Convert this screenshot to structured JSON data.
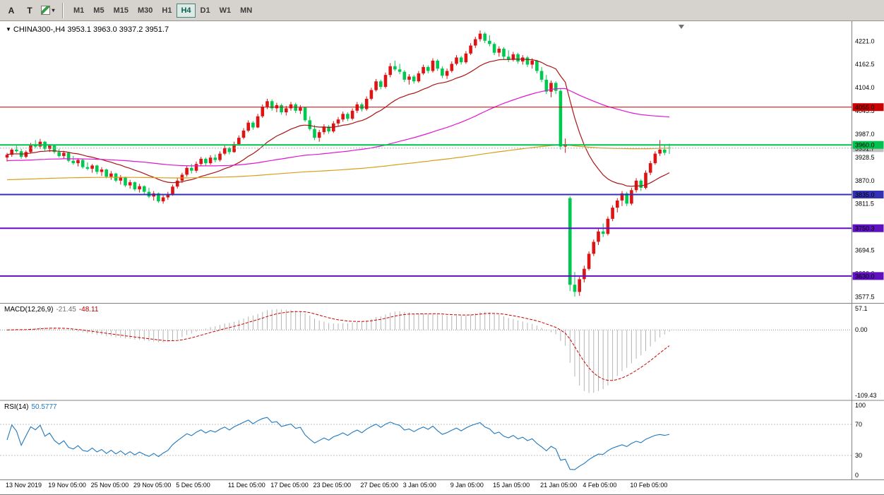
{
  "icons": {
    "symbol_dropdown": "▼",
    "chevron_down": "▾"
  },
  "toolbar": {
    "tool_buttons": [
      {
        "label": "A"
      },
      {
        "label": "T"
      }
    ],
    "timeframes": [
      "M1",
      "M5",
      "M15",
      "M30",
      "H1",
      "H4",
      "D1",
      "W1",
      "MN"
    ],
    "active_timeframe": "H4"
  },
  "chart_data": {
    "type": "candlestick",
    "symbol": "CHINA300-",
    "timeframe": "H4",
    "header_symbol": "CHINA300-,H4",
    "header_ohlc": "3953.1 3963.0 3937.2 3951.7",
    "ohlc": {
      "open": 3953.1,
      "high": 3963.0,
      "low": 3937.2,
      "close": 3951.7
    },
    "colors": {
      "bull": "#dc1414",
      "bear": "#00c850",
      "macd_hist": "#b4b4b4",
      "macd_signal": "#cc0000",
      "rsi_line": "#1e78be",
      "divider": "#808080"
    },
    "y_range": [
      3564,
      4266
    ],
    "y_ticks": [
      4221.0,
      4162.5,
      4104.0,
      4045.5,
      3987.0,
      3928.5,
      3870.0,
      3811.5,
      3753.0,
      3694.5,
      3636.0,
      3577.5
    ],
    "current_price": {
      "value": 3951.7,
      "label": "3951.7",
      "label_bg": "#c0c0c0"
    },
    "h_lines": [
      {
        "price": 4055.0,
        "label": "4055.0",
        "color": "#cc0000",
        "width": 1
      },
      {
        "price": 3960.0,
        "label": "3960.0",
        "color": "#00c24e",
        "width": 2
      },
      {
        "price": 3835.0,
        "label": "3835.0",
        "color": "#3232b4",
        "width": 2
      },
      {
        "price": 3750.3,
        "label": "3750.3",
        "color": "#5f10c0",
        "width": 2
      },
      {
        "price": 3630.0,
        "label": "3630.0",
        "color": "#5f10c0",
        "width": 2
      }
    ],
    "moving_averages": [
      {
        "name": "ma-fast",
        "type": "ema",
        "period": 21,
        "seed": 3936,
        "color": "#aa1414"
      },
      {
        "name": "ma-mid",
        "type": "sma",
        "period": 70,
        "seed": 3920,
        "color": "#e016d0"
      },
      {
        "name": "ma-slow",
        "type": "sma",
        "period": 200,
        "seed": 3872,
        "color": "#d89e18"
      }
    ],
    "macd": {
      "title": "MACD(12,26,9)",
      "fast": 12,
      "slow": 26,
      "signal_period": 9,
      "value_main": "-21.45",
      "value_signal": "-48.11",
      "tick_top": "57.1",
      "tick_zero": "0.00",
      "tick_bottom": "-109.43"
    },
    "rsi": {
      "title": "RSI(14)",
      "period": 14,
      "value": "50.5777",
      "levels": [
        100,
        70,
        30,
        0
      ],
      "dashed_levels": [
        70,
        30
      ]
    },
    "x_labels": [
      {
        "i": 0,
        "t": "13 Nov 2019"
      },
      {
        "i": 9,
        "t": "19 Nov 05:00"
      },
      {
        "i": 18,
        "t": "25 Nov 05:00"
      },
      {
        "i": 27,
        "t": "29 Nov 05:00"
      },
      {
        "i": 36,
        "t": "5 Dec 05:00"
      },
      {
        "i": 47,
        "t": "11 Dec 05:00"
      },
      {
        "i": 56,
        "t": "17 Dec 05:00"
      },
      {
        "i": 65,
        "t": "23 Dec 05:00"
      },
      {
        "i": 75,
        "t": "27 Dec 05:00"
      },
      {
        "i": 84,
        "t": "3 Jan 05:00"
      },
      {
        "i": 94,
        "t": "9 Jan 05:00"
      },
      {
        "i": 103,
        "t": "15 Jan 05:00"
      },
      {
        "i": 113,
        "t": "21 Jan 05:00"
      },
      {
        "i": 122,
        "t": "4 Feb 05:00"
      },
      {
        "i": 132,
        "t": "10 Feb 05:00"
      }
    ],
    "candles": [
      [
        3928,
        3940,
        3918,
        3935
      ],
      [
        3935,
        3952,
        3930,
        3948
      ],
      [
        3948,
        3958,
        3940,
        3944
      ],
      [
        3944,
        3950,
        3925,
        3930
      ],
      [
        3930,
        3946,
        3926,
        3942
      ],
      [
        3942,
        3965,
        3938,
        3960
      ],
      [
        3960,
        3972,
        3952,
        3956
      ],
      [
        3956,
        3975,
        3950,
        3968
      ],
      [
        3968,
        3970,
        3945,
        3950
      ],
      [
        3950,
        3962,
        3942,
        3958
      ],
      [
        3958,
        3960,
        3938,
        3942
      ],
      [
        3942,
        3950,
        3928,
        3932
      ],
      [
        3932,
        3945,
        3925,
        3940
      ],
      [
        3940,
        3942,
        3916,
        3920
      ],
      [
        3920,
        3932,
        3910,
        3914
      ],
      [
        3914,
        3926,
        3906,
        3922
      ],
      [
        3922,
        3924,
        3900,
        3904
      ],
      [
        3904,
        3916,
        3896,
        3900
      ],
      [
        3900,
        3912,
        3890,
        3908
      ],
      [
        3908,
        3910,
        3886,
        3892
      ],
      [
        3892,
        3904,
        3882,
        3898
      ],
      [
        3898,
        3900,
        3876,
        3880
      ],
      [
        3880,
        3894,
        3872,
        3888
      ],
      [
        3888,
        3890,
        3866,
        3870
      ],
      [
        3870,
        3884,
        3860,
        3878
      ],
      [
        3878,
        3880,
        3854,
        3858
      ],
      [
        3858,
        3872,
        3850,
        3866
      ],
      [
        3866,
        3868,
        3844,
        3848
      ],
      [
        3848,
        3862,
        3840,
        3856
      ],
      [
        3856,
        3858,
        3836,
        3842
      ],
      [
        3842,
        3852,
        3826,
        3830
      ],
      [
        3830,
        3844,
        3820,
        3838
      ],
      [
        3838,
        3840,
        3814,
        3818
      ],
      [
        3818,
        3834,
        3812,
        3828
      ],
      [
        3828,
        3842,
        3822,
        3836
      ],
      [
        3836,
        3860,
        3832,
        3855
      ],
      [
        3855,
        3876,
        3850,
        3870
      ],
      [
        3870,
        3890,
        3864,
        3885
      ],
      [
        3885,
        3908,
        3880,
        3902
      ],
      [
        3902,
        3912,
        3888,
        3895
      ],
      [
        3895,
        3918,
        3890,
        3912
      ],
      [
        3912,
        3930,
        3906,
        3925
      ],
      [
        3925,
        3928,
        3908,
        3914
      ],
      [
        3914,
        3934,
        3910,
        3928
      ],
      [
        3928,
        3936,
        3916,
        3922
      ],
      [
        3922,
        3944,
        3918,
        3938
      ],
      [
        3938,
        3958,
        3934,
        3952
      ],
      [
        3952,
        3955,
        3936,
        3942
      ],
      [
        3942,
        3968,
        3940,
        3962
      ],
      [
        3962,
        3984,
        3958,
        3978
      ],
      [
        3978,
        4002,
        3974,
        3996
      ],
      [
        3996,
        4022,
        3992,
        4016
      ],
      [
        4016,
        4020,
        3998,
        4004
      ],
      [
        4004,
        4038,
        4002,
        4032
      ],
      [
        4032,
        4062,
        4028,
        4056
      ],
      [
        4056,
        4076,
        4050,
        4070
      ],
      [
        4070,
        4074,
        4046,
        4052
      ],
      [
        4052,
        4066,
        4042,
        4060
      ],
      [
        4060,
        4064,
        4036,
        4042
      ],
      [
        4042,
        4058,
        4034,
        4052
      ],
      [
        4052,
        4068,
        4046,
        4062
      ],
      [
        4062,
        4066,
        4040,
        4046
      ],
      [
        4046,
        4060,
        4038,
        4054
      ],
      [
        4054,
        4056,
        4018,
        4022
      ],
      [
        4022,
        4032,
        3996,
        4000
      ],
      [
        4000,
        4010,
        3972,
        3978
      ],
      [
        3978,
        3998,
        3968,
        3992
      ],
      [
        3992,
        4012,
        3986,
        4006
      ],
      [
        4006,
        4010,
        3988,
        3994
      ],
      [
        3994,
        4020,
        3990,
        4014
      ],
      [
        4014,
        4030,
        4008,
        4024
      ],
      [
        4024,
        4044,
        4018,
        4038
      ],
      [
        4038,
        4042,
        4020,
        4026
      ],
      [
        4026,
        4052,
        4022,
        4046
      ],
      [
        4046,
        4068,
        4040,
        4062
      ],
      [
        4062,
        4066,
        4044,
        4050
      ],
      [
        4050,
        4082,
        4046,
        4076
      ],
      [
        4076,
        4104,
        4072,
        4098
      ],
      [
        4098,
        4126,
        4094,
        4120
      ],
      [
        4120,
        4124,
        4100,
        4106
      ],
      [
        4106,
        4142,
        4102,
        4136
      ],
      [
        4136,
        4166,
        4130,
        4158
      ],
      [
        4158,
        4172,
        4146,
        4150
      ],
      [
        4150,
        4164,
        4138,
        4144
      ],
      [
        4144,
        4148,
        4118,
        4124
      ],
      [
        4124,
        4138,
        4112,
        4132
      ],
      [
        4132,
        4136,
        4114,
        4120
      ],
      [
        4120,
        4146,
        4116,
        4140
      ],
      [
        4140,
        4162,
        4136,
        4156
      ],
      [
        4156,
        4160,
        4140,
        4146
      ],
      [
        4146,
        4178,
        4142,
        4172
      ],
      [
        4172,
        4176,
        4146,
        4152
      ],
      [
        4152,
        4158,
        4128,
        4134
      ],
      [
        4134,
        4152,
        4126,
        4146
      ],
      [
        4146,
        4170,
        4142,
        4164
      ],
      [
        4164,
        4186,
        4160,
        4180
      ],
      [
        4180,
        4184,
        4162,
        4168
      ],
      [
        4168,
        4196,
        4164,
        4190
      ],
      [
        4190,
        4216,
        4186,
        4210
      ],
      [
        4210,
        4232,
        4204,
        4226
      ],
      [
        4226,
        4248,
        4220,
        4240
      ],
      [
        4240,
        4244,
        4216,
        4222
      ],
      [
        4222,
        4236,
        4208,
        4214
      ],
      [
        4214,
        4218,
        4186,
        4192
      ],
      [
        4192,
        4208,
        4182,
        4202
      ],
      [
        4202,
        4206,
        4176,
        4182
      ],
      [
        4182,
        4198,
        4168,
        4174
      ],
      [
        4174,
        4194,
        4170,
        4188
      ],
      [
        4188,
        4192,
        4164,
        4170
      ],
      [
        4170,
        4186,
        4162,
        4180
      ],
      [
        4180,
        4184,
        4156,
        4162
      ],
      [
        4162,
        4178,
        4152,
        4172
      ],
      [
        4172,
        4174,
        4140,
        4146
      ],
      [
        4146,
        4156,
        4118,
        4124
      ],
      [
        4124,
        4136,
        4088,
        4094
      ],
      [
        4094,
        4122,
        4080,
        4116
      ],
      [
        4116,
        4120,
        4088,
        4096
      ],
      [
        4096,
        4100,
        3948,
        3956
      ],
      [
        3956,
        3976,
        3940,
        3962
      ],
      [
        3826,
        3830,
        3592,
        3608
      ],
      [
        3608,
        3640,
        3578,
        3590
      ],
      [
        3590,
        3628,
        3580,
        3622
      ],
      [
        3622,
        3656,
        3614,
        3648
      ],
      [
        3648,
        3692,
        3644,
        3686
      ],
      [
        3686,
        3722,
        3680,
        3716
      ],
      [
        3716,
        3748,
        3708,
        3742
      ],
      [
        3742,
        3762,
        3728,
        3736
      ],
      [
        3736,
        3780,
        3732,
        3774
      ],
      [
        3774,
        3808,
        3768,
        3802
      ],
      [
        3802,
        3826,
        3790,
        3820
      ],
      [
        3820,
        3844,
        3806,
        3838
      ],
      [
        3838,
        3842,
        3806,
        3812
      ],
      [
        3812,
        3852,
        3808,
        3846
      ],
      [
        3846,
        3876,
        3840,
        3870
      ],
      [
        3870,
        3874,
        3844,
        3852
      ],
      [
        3852,
        3896,
        3848,
        3890
      ],
      [
        3890,
        3920,
        3884,
        3914
      ],
      [
        3914,
        3944,
        3910,
        3938
      ],
      [
        3938,
        3972,
        3932,
        3948
      ],
      [
        3948,
        3960,
        3934,
        3940
      ],
      [
        3953.1,
        3963,
        3937.2,
        3951.7
      ]
    ]
  }
}
